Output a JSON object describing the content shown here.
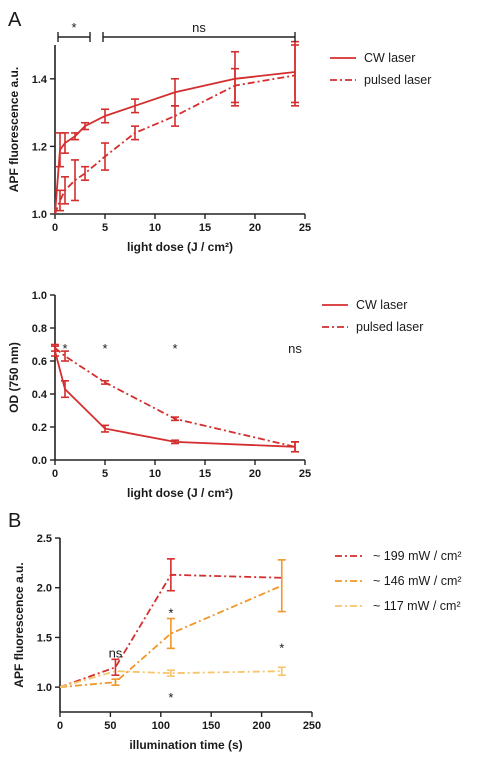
{
  "panel_letters": [
    "A",
    "B"
  ],
  "chart_data": [
    {
      "type": "line",
      "xlabel": "light dose (J / cm²)",
      "ylabel": "APF fluorescence  a.u.",
      "xlim": [
        0,
        25
      ],
      "ylim": [
        1.0,
        1.5
      ],
      "xticks": [
        0,
        5,
        10,
        15,
        20,
        25
      ],
      "yticks": [
        1.0,
        1.2,
        1.4
      ],
      "grid": false,
      "legend_position": "right",
      "series": [
        {
          "name": "CW laser",
          "line_style": "solid",
          "color": "#d42e2e",
          "x": [
            0,
            0.5,
            1,
            2,
            3,
            5,
            8,
            12,
            18,
            24
          ],
          "y": [
            1.0,
            1.19,
            1.21,
            1.23,
            1.26,
            1.29,
            1.32,
            1.36,
            1.4,
            1.42
          ],
          "error": [
            0.0,
            0.05,
            0.03,
            0.01,
            0.01,
            0.02,
            0.02,
            0.04,
            0.08,
            0.09
          ]
        },
        {
          "name": "pulsed laser",
          "line_style": "dashdot",
          "color": "#d42e2e",
          "x": [
            0,
            0.5,
            1,
            2,
            3,
            5,
            8,
            12,
            18,
            24
          ],
          "y": [
            1.0,
            1.04,
            1.07,
            1.1,
            1.12,
            1.17,
            1.24,
            1.29,
            1.38,
            1.41
          ],
          "error": [
            0.0,
            0.03,
            0.04,
            0.06,
            0.02,
            0.04,
            0.02,
            0.03,
            0.05,
            0.09
          ]
        }
      ],
      "annotations": [
        {
          "text": "*",
          "x_from": 0.3,
          "x_to": 3.5
        },
        {
          "text": "ns",
          "x_from": 4.8,
          "x_to": 24
        }
      ]
    },
    {
      "type": "line",
      "xlabel": "light dose (J / cm²)",
      "ylabel": "OD (750 nm)",
      "xlim": [
        0,
        25
      ],
      "ylim": [
        0.0,
        1.0
      ],
      "xticks": [
        0,
        5,
        10,
        15,
        20,
        25
      ],
      "yticks": [
        0.0,
        0.2,
        0.4,
        0.6,
        0.8,
        1.0
      ],
      "grid": false,
      "legend_position": "right",
      "series": [
        {
          "name": "CW laser",
          "line_style": "solid",
          "color": "#d42e2e",
          "x": [
            0,
            1,
            5,
            12,
            24
          ],
          "y": [
            0.66,
            0.43,
            0.19,
            0.11,
            0.08
          ],
          "error": [
            0.03,
            0.05,
            0.02,
            0.01,
            0.03
          ]
        },
        {
          "name": "pulsed laser",
          "line_style": "dashdot",
          "color": "#d42e2e",
          "x": [
            0,
            1,
            5,
            12,
            24
          ],
          "y": [
            0.68,
            0.63,
            0.47,
            0.25,
            0.08
          ],
          "error": [
            0.02,
            0.03,
            0.01,
            0.01,
            0.03
          ]
        }
      ],
      "annotations": [
        {
          "text": "*",
          "x": 1,
          "y": 0.68
        },
        {
          "text": "*",
          "x": 5,
          "y": 0.68
        },
        {
          "text": "*",
          "x": 12,
          "y": 0.68
        },
        {
          "text": "ns",
          "x": 24,
          "y": 0.68
        }
      ]
    },
    {
      "type": "line",
      "xlabel": "illumination time (s)",
      "ylabel": "APF fluorescence a.u.",
      "xlim": [
        0,
        250
      ],
      "ylim": [
        0.75,
        2.5
      ],
      "xticks": [
        0,
        50,
        100,
        150,
        200,
        250
      ],
      "yticks": [
        1.0,
        1.5,
        2.0,
        2.5
      ],
      "grid": false,
      "legend_position": "right",
      "series": [
        {
          "name": "~ 199 mW / cm²",
          "line_style": "dashdot",
          "color": "#d42e2e",
          "x": [
            0,
            55,
            110,
            220
          ],
          "y": [
            1.0,
            1.2,
            2.13,
            2.1
          ],
          "error": [
            0.0,
            0.08,
            0.16,
            0.0
          ]
        },
        {
          "name": "~ 146 mW / cm²",
          "line_style": "dashdot",
          "color": "#f0962a",
          "x": [
            0,
            55,
            110,
            220
          ],
          "y": [
            1.0,
            1.05,
            1.54,
            2.02
          ],
          "error": [
            0.0,
            0.03,
            0.15,
            0.26
          ]
        },
        {
          "name": "~ 117 mW / cm²",
          "line_style": "dashdot",
          "color": "#f7c46a",
          "x": [
            0,
            55,
            110,
            220
          ],
          "y": [
            1.0,
            1.16,
            1.14,
            1.16
          ],
          "error": [
            0.0,
            0.0,
            0.03,
            0.04
          ]
        }
      ],
      "annotations": [
        {
          "text": "ns",
          "x": 55,
          "y": 1.35
        },
        {
          "text": "*",
          "x": 110,
          "y": 1.75
        },
        {
          "text": "*",
          "x": 110,
          "y": 0.9
        },
        {
          "text": "*",
          "x": 220,
          "y": 1.4
        }
      ]
    }
  ]
}
